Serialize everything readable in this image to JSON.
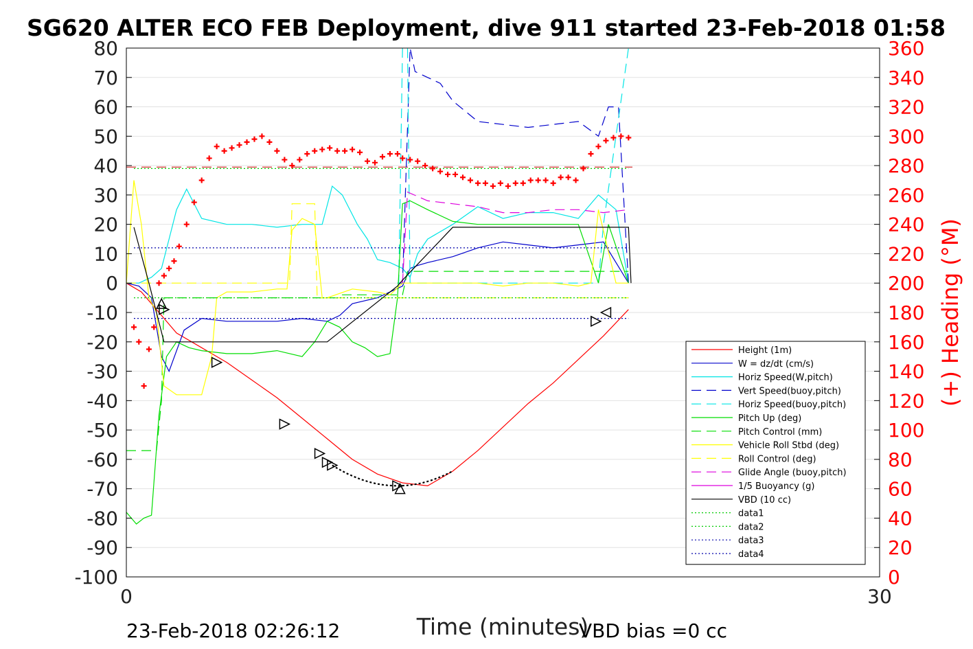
{
  "chart_data": {
    "type": "line",
    "title": "SG620 ALTER ECO FEB Deployment, dive 911 started 23-Feb-2018 01:58",
    "xlabel": "Time (minutes)",
    "ylabel_right": "(+) Heading (°M)",
    "xlim": [
      0,
      30
    ],
    "ylim": [
      -100,
      80
    ],
    "ylim_right": [
      0,
      360
    ],
    "x_ticks": [
      "0",
      "30"
    ],
    "y_ticks": [
      "80",
      "70",
      "60",
      "50",
      "40",
      "30",
      "20",
      "10",
      "0",
      "-10",
      "-20",
      "-30",
      "-40",
      "-50",
      "-60",
      "-70",
      "-80",
      "-90",
      "-100"
    ],
    "y_ticks_right": [
      "360",
      "340",
      "320",
      "300",
      "280",
      "260",
      "240",
      "220",
      "200",
      "180",
      "160",
      "140",
      "120",
      "100",
      "80",
      "60",
      "40",
      "20",
      "0"
    ],
    "grid": "horizontal",
    "legend_position": "lower-right",
    "footer_left": "23-Feb-2018 02:26:12",
    "footer_right": "VBD bias =0 cc",
    "colors": {
      "height": "#ff0000",
      "w": "#0000cc",
      "horiz": "#00e5e5",
      "pitch": "#00dd00",
      "roll": "#ffff00",
      "glide": "#dd00dd",
      "vbd": "#000000",
      "heading": "#ff0000",
      "data3": "#0000aa"
    },
    "series": [
      {
        "name": "Height (1m)",
        "color": "#ff0000",
        "dash": "",
        "x": [
          0.0,
          0.6,
          1.3,
          2.0,
          3.0,
          4.0,
          5.0,
          6.0,
          7.0,
          8.0,
          9.0,
          10.0,
          11.0,
          12.0,
          13.0,
          14.0,
          15.0,
          16.0,
          17.0,
          18.0,
          19.0,
          20.0
        ],
        "y": [
          0,
          -3,
          -10,
          -17,
          -22,
          -27,
          -33,
          -39,
          -46,
          -53,
          -60,
          -65,
          -68,
          -69,
          -64,
          -57,
          -49,
          -41,
          -34,
          -26,
          -18,
          -9
        ]
      },
      {
        "name": "W = dz/dt (cm/s)",
        "color": "#0000cc",
        "dash": "",
        "x": [
          0.0,
          0.5,
          1.0,
          1.4,
          1.7,
          2.3,
          3.0,
          4.0,
          5.0,
          6.0,
          7.0,
          8.0,
          8.5,
          9.0,
          10.0,
          11.0,
          11.3,
          11.6,
          12.0,
          13.0,
          14.0,
          15.0,
          16.0,
          17.0,
          18.0,
          19.0,
          20.0
        ],
        "y": [
          0,
          -1,
          -5,
          -25,
          -30,
          -16,
          -12,
          -13,
          -13,
          -13,
          -12,
          -13,
          -11,
          -7,
          -5,
          -1,
          5,
          6,
          7,
          9,
          12,
          14,
          13,
          12,
          13,
          14,
          0
        ]
      },
      {
        "name": "Horiz Speed(W,pitch)",
        "color": "#00e5e5",
        "dash": "",
        "x": [
          0.0,
          0.5,
          1.0,
          1.4,
          1.7,
          2.0,
          2.4,
          3.0,
          4.0,
          5.0,
          6.0,
          7.0,
          7.8,
          8.2,
          8.6,
          9.2,
          9.6,
          10.0,
          10.5,
          11.0,
          11.3,
          11.6,
          12.0,
          13.0,
          14.0,
          15.0,
          16.0,
          17.0,
          18.0,
          18.8,
          19.5,
          20.0
        ],
        "y": [
          0,
          0,
          2,
          5,
          15,
          25,
          32,
          22,
          20,
          20,
          19,
          20,
          20,
          33,
          30,
          20,
          15,
          8,
          7,
          5,
          2,
          10,
          15,
          20,
          26,
          22,
          24,
          24,
          22,
          30,
          25,
          0
        ]
      },
      {
        "name": "Vert Speed(buoy,pitch)",
        "color": "#0000cc",
        "dash": "14,8",
        "x": [
          10.8,
          10.85,
          11.0,
          11.3,
          11.5,
          12.0,
          12.5,
          13.0,
          14.0,
          15.0,
          16.0,
          17.0,
          18.0,
          18.8,
          19.2,
          19.6,
          20.0
        ],
        "y": [
          0,
          0,
          0,
          80,
          72,
          70,
          68,
          62,
          55,
          54,
          53,
          54,
          55,
          50,
          60,
          60,
          0
        ]
      },
      {
        "name": "Horiz Speed(buoy,pitch)",
        "color": "#00e5e5",
        "dash": "14,8",
        "x": [
          10.8,
          10.85,
          11.0,
          11.2,
          11.3,
          11.4,
          18.8,
          19.0,
          20.0
        ],
        "y": [
          0,
          0,
          80,
          80,
          0,
          0,
          0,
          20,
          80
        ]
      },
      {
        "name": "Pitch Up (deg)",
        "color": "#00dd00",
        "dash": "",
        "x": [
          0.0,
          0.4,
          0.7,
          1.0,
          1.3,
          1.6,
          2.0,
          2.5,
          3.0,
          4.0,
          5.0,
          6.0,
          7.0,
          7.5,
          8.0,
          8.5,
          9.0,
          9.5,
          10.0,
          10.5,
          10.8,
          11.0,
          11.3,
          12.0,
          13.0,
          14.0,
          15.0,
          16.0,
          17.0,
          18.0,
          18.8,
          19.2,
          20.0
        ],
        "y": [
          -78,
          -82,
          -80,
          -79,
          -45,
          -25,
          -20,
          -22,
          -23,
          -24,
          -24,
          -23,
          -25,
          -20,
          -13,
          -15,
          -20,
          -22,
          -25,
          -24,
          -5,
          27,
          28,
          25,
          21,
          20,
          20,
          20,
          20,
          20,
          0,
          20,
          0
        ]
      },
      {
        "name": "Pitch Control (mm)",
        "color": "#00dd00",
        "dash": "14,8",
        "x": [
          0.0,
          1.2,
          1.4,
          1.5,
          8.5,
          8.6,
          11.0,
          11.2,
          18.8,
          19.0,
          20.0
        ],
        "y": [
          -57,
          -57,
          -40,
          -5,
          -5,
          -4,
          -4,
          4,
          4,
          4,
          4
        ]
      },
      {
        "name": "Vehicle Roll Stbd (deg)",
        "color": "#ffff00",
        "dash": "",
        "x": [
          0.0,
          0.3,
          0.6,
          0.9,
          1.2,
          1.5,
          2.0,
          3.0,
          3.4,
          3.6,
          4.0,
          5.0,
          6.0,
          6.4,
          6.6,
          7.0,
          7.5,
          7.8,
          8.0,
          9.0,
          10.0,
          10.5,
          11.0,
          12.0,
          13.0,
          14.0,
          15.0,
          16.0,
          17.0,
          18.0,
          18.5,
          18.8,
          19.5,
          20.0
        ],
        "y": [
          0,
          35,
          20,
          -5,
          -10,
          -35,
          -38,
          -38,
          -25,
          -5,
          -3,
          -3,
          -2,
          -2,
          18,
          22,
          20,
          -5,
          -5,
          -2,
          -3,
          -4,
          0,
          0,
          0,
          0,
          -1,
          0,
          0,
          -1,
          0,
          25,
          0,
          0
        ]
      },
      {
        "name": "Roll Control (deg)",
        "color": "#ffff00",
        "dash": "14,8",
        "x": [
          0.0,
          2.0,
          2.3,
          6.5,
          6.6,
          7.5,
          7.6,
          11.0,
          11.2,
          20.0
        ],
        "y": [
          0,
          0,
          0,
          0,
          27,
          27,
          -5,
          -5,
          -5,
          -5
        ]
      },
      {
        "name": "Glide Angle (buoy,pitch)",
        "color": "#dd00dd",
        "dash": "14,8",
        "x": [
          11.0,
          11.2,
          12.0,
          13.0,
          14.0,
          15.0,
          16.0,
          17.0,
          18.0,
          19.0,
          20.0
        ],
        "y": [
          0,
          31,
          28,
          27,
          26,
          24,
          24,
          25,
          25,
          24,
          25
        ]
      },
      {
        "name": "1/5 Buoyancy (g)",
        "color": "#dd00dd",
        "dash": "",
        "x": [],
        "y": []
      },
      {
        "name": "VBD (10 cc)",
        "color": "#000000",
        "dash": "",
        "x": [
          0.3,
          0.9,
          1.2,
          1.5,
          8.0,
          10.8,
          11.0,
          13.0,
          20.0,
          20.1
        ],
        "y": [
          19,
          0,
          -10,
          -20,
          -20,
          -1,
          1,
          19,
          19,
          0
        ]
      },
      {
        "name": "data1",
        "color": "#00cc00",
        "dash": "2,3",
        "x": [
          0.3,
          20.0
        ],
        "y": [
          39,
          39
        ]
      },
      {
        "name": "data2",
        "color": "#00cc00",
        "dash": "2,3",
        "x": [
          0.3,
          20.0
        ],
        "y": [
          -5,
          -5
        ]
      },
      {
        "name": "data3",
        "color": "#0000aa",
        "dash": "2,3",
        "x": [
          0.3,
          20.0
        ],
        "y": [
          12,
          12
        ]
      },
      {
        "name": "data4",
        "color": "#0000aa",
        "dash": "2,3",
        "x": [
          0.3,
          20.0
        ],
        "y": [
          -12,
          -12
        ]
      }
    ],
    "heading_reference": 279,
    "heading": {
      "axis": "right",
      "marker": "+",
      "x": [
        0.3,
        0.5,
        0.7,
        0.9,
        1.1,
        1.3,
        1.5,
        1.7,
        1.9,
        2.1,
        2.4,
        2.7,
        3.0,
        3.3,
        3.6,
        3.9,
        4.2,
        4.5,
        4.8,
        5.1,
        5.4,
        5.7,
        6.0,
        6.3,
        6.6,
        6.9,
        7.2,
        7.5,
        7.8,
        8.1,
        8.4,
        8.7,
        9.0,
        9.3,
        9.6,
        9.9,
        10.2,
        10.5,
        10.8,
        11.0,
        11.3,
        11.6,
        11.9,
        12.2,
        12.5,
        12.8,
        13.1,
        13.4,
        13.7,
        14.0,
        14.3,
        14.6,
        14.9,
        15.2,
        15.5,
        15.8,
        16.1,
        16.4,
        16.7,
        17.0,
        17.3,
        17.6,
        17.9,
        18.2,
        18.5,
        18.8,
        19.1,
        19.4,
        19.7,
        20.0
      ],
      "y": [
        170,
        160,
        130,
        155,
        170,
        200,
        205,
        210,
        215,
        225,
        240,
        255,
        270,
        285,
        293,
        290,
        292,
        294,
        296,
        298,
        300,
        296,
        290,
        284,
        280,
        284,
        288,
        290,
        291,
        292,
        290,
        290,
        291,
        289,
        283,
        282,
        286,
        288,
        288,
        285,
        284,
        283,
        280,
        278,
        276,
        274,
        274,
        272,
        270,
        268,
        268,
        266,
        268,
        266,
        268,
        268,
        270,
        270,
        270,
        268,
        272,
        272,
        270,
        278,
        288,
        293,
        297,
        299,
        300,
        299
      ]
    },
    "triangles": {
      "x": [
        1.4,
        1.5,
        3.6,
        6.3,
        7.7,
        8.0,
        8.2,
        10.8,
        10.9,
        18.7,
        19.1
      ],
      "y": [
        -7,
        -9,
        -27,
        -48,
        -58,
        -61,
        -62,
        -69,
        -70,
        -13,
        -10
      ],
      "dir": [
        "up",
        "right",
        "right",
        "right",
        "right",
        "right",
        "right",
        "right",
        "up",
        "right",
        "left"
      ]
    }
  }
}
